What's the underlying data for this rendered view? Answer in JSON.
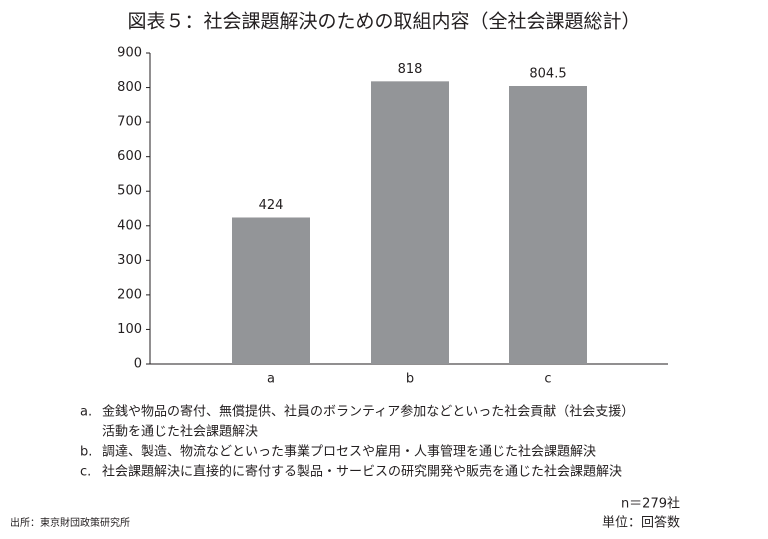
{
  "chart_data": {
    "type": "bar",
    "title": "図表５：社会課題解決のための取組内容（全社会課題総計）",
    "categories": [
      "a",
      "b",
      "c"
    ],
    "values": [
      424,
      818,
      804.5
    ],
    "color": "#939598",
    "ylim": [
      0,
      900
    ],
    "yticks": [
      0,
      100,
      200,
      300,
      400,
      500,
      600,
      700,
      800,
      900
    ],
    "grid": false,
    "notes": [
      {
        "label": "a.",
        "lines": [
          "金銭や物品の寄付、無償提供、社員のボランティア参加などといった社会貢献（社会支援）",
          "活動を通じた社会課題解決"
        ]
      },
      {
        "label": "b.",
        "lines": [
          "調達、製造、物流などといった事業プロセスや雇用・人事管理を通じた社会課題解決"
        ]
      },
      {
        "label": "c.",
        "lines": [
          "社会課題解決に直接的に寄付する製品・サービスの研究開発や販売を通じた社会課題解決"
        ]
      }
    ],
    "sample_size": "n＝279社",
    "unit": "単位：回答数",
    "source": "出所：東京財団政策研究所"
  }
}
